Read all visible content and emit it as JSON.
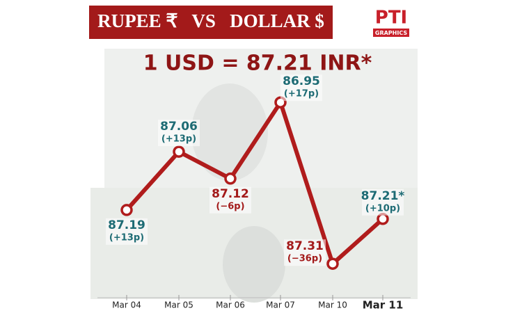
{
  "chart_data": {
    "type": "line",
    "header": "RUPEE ₹   VS   DOLLAR $",
    "logo": "PTI",
    "logo_sub": "GRAPHICS",
    "title": "1 USD = 87.21 INR*",
    "categories": [
      "Mar 04",
      "Mar 05",
      "Mar 06",
      "Mar 07",
      "Mar 10",
      "Mar 11"
    ],
    "values": [
      87.19,
      87.06,
      87.12,
      86.95,
      87.31,
      87.21
    ],
    "value_labels": [
      "87.19",
      "87.06",
      "87.12",
      "86.95",
      "87.31",
      "87.21*"
    ],
    "annotations": [
      "(+13p)",
      "(+13p)",
      "(−6p)",
      "(+17p)",
      "(−36p)",
      "(+10p)"
    ],
    "label_colors": [
      "#1d6b74",
      "#1d6b74",
      "#a31a1a",
      "#1d6b74",
      "#a31a1a",
      "#1d6b74"
    ],
    "color": "#b01c1c",
    "ylim": [
      86.9,
      87.35
    ],
    "y_inverted": true
  }
}
